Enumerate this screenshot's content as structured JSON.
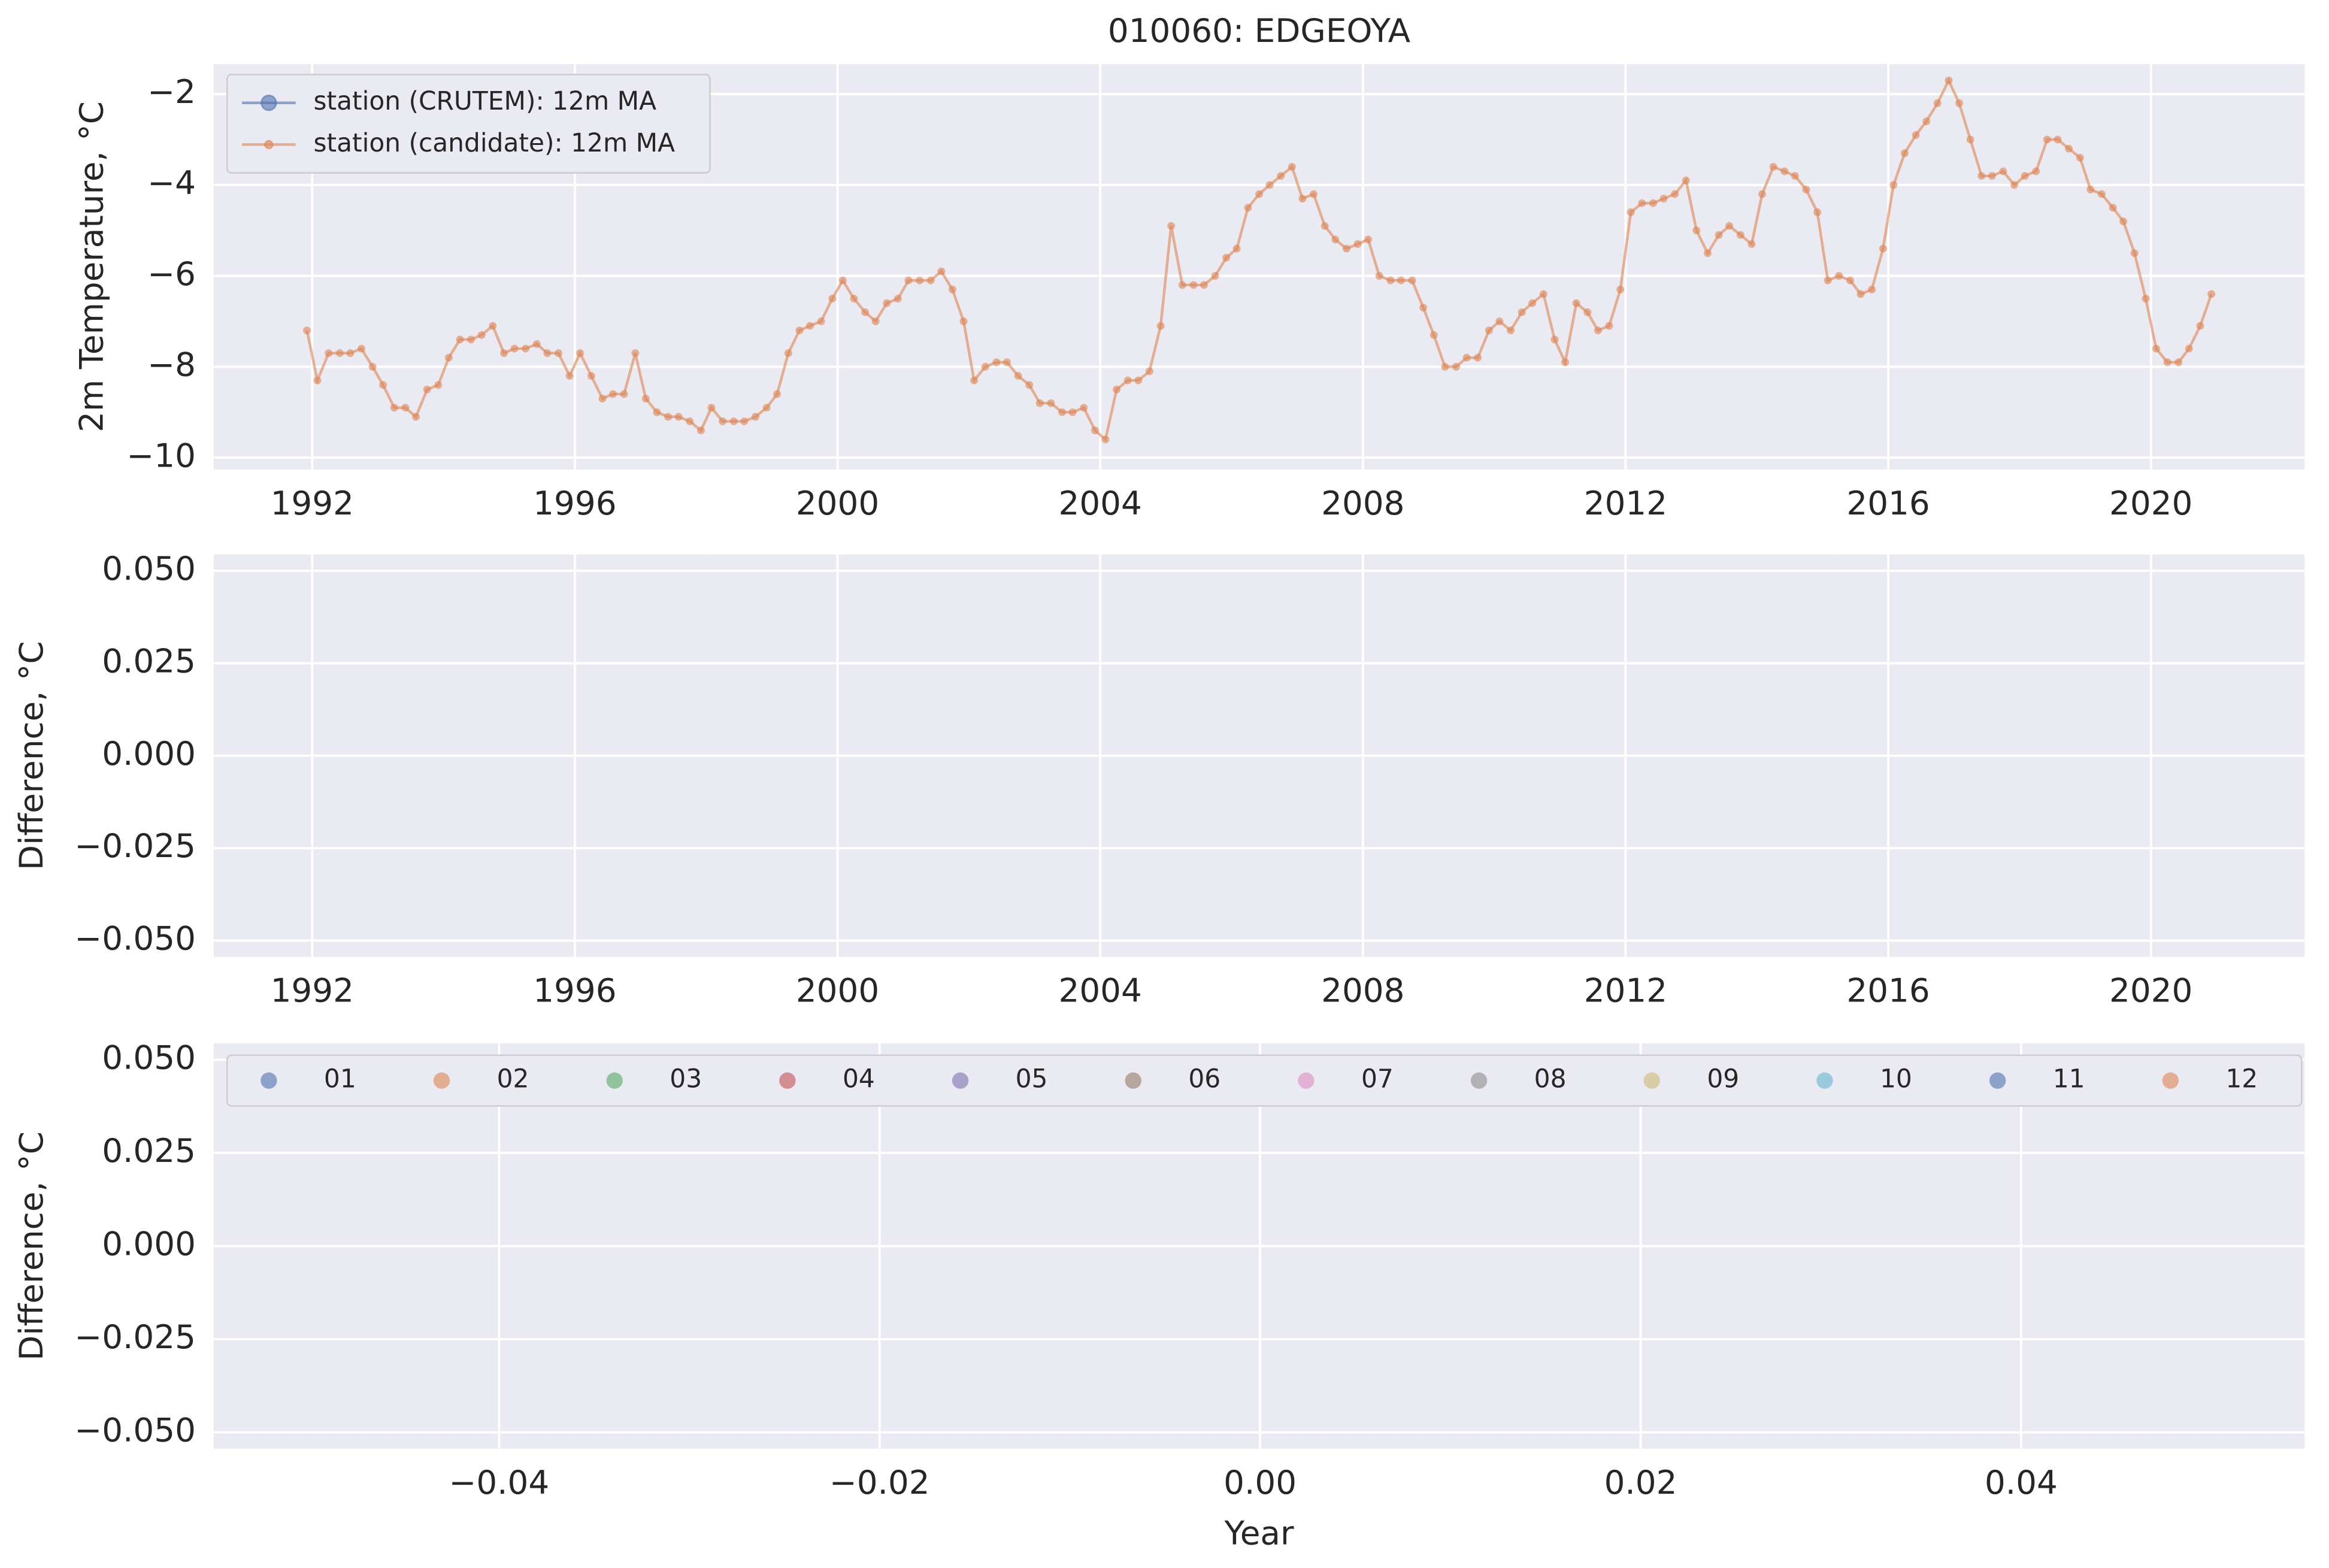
{
  "chart_data": [
    {
      "type": "line",
      "title": "010060: EDGEOYA",
      "ylabel": "2m Temperature, °C",
      "x": [
        1991.92,
        1992.08,
        1992.25,
        1992.42,
        1992.58,
        1992.75,
        1992.92,
        1993.08,
        1993.25,
        1993.42,
        1993.58,
        1993.75,
        1993.92,
        1994.08,
        1994.25,
        1994.42,
        1994.58,
        1994.75,
        1994.92,
        1995.08,
        1995.25,
        1995.42,
        1995.58,
        1995.75,
        1995.92,
        1996.08,
        1996.25,
        1996.42,
        1996.58,
        1996.75,
        1996.92,
        1997.08,
        1997.25,
        1997.42,
        1997.58,
        1997.75,
        1997.92,
        1998.08,
        1998.25,
        1998.42,
        1998.58,
        1998.75,
        1998.92,
        1999.08,
        1999.25,
        1999.42,
        1999.58,
        1999.75,
        1999.92,
        2000.08,
        2000.25,
        2000.42,
        2000.58,
        2000.75,
        2000.92,
        2001.08,
        2001.25,
        2001.42,
        2001.58,
        2001.75,
        2001.92,
        2002.08,
        2002.25,
        2002.42,
        2002.58,
        2002.75,
        2002.92,
        2003.08,
        2003.25,
        2003.42,
        2003.58,
        2003.75,
        2003.92,
        2004.08,
        2004.25,
        2004.42,
        2004.58,
        2004.75,
        2004.92,
        2005.08,
        2005.25,
        2005.42,
        2005.58,
        2005.75,
        2005.92,
        2006.08,
        2006.25,
        2006.42,
        2006.58,
        2006.75,
        2006.92,
        2007.08,
        2007.25,
        2007.42,
        2007.58,
        2007.75,
        2007.92,
        2008.08,
        2008.25,
        2008.42,
        2008.58,
        2008.75,
        2008.92,
        2009.08,
        2009.25,
        2009.42,
        2009.58,
        2009.75,
        2009.92,
        2010.08,
        2010.25,
        2010.42,
        2010.58,
        2010.75,
        2010.92,
        2011.08,
        2011.25,
        2011.42,
        2011.58,
        2011.75,
        2011.92,
        2012.08,
        2012.25,
        2012.42,
        2012.58,
        2012.75,
        2012.92,
        2013.08,
        2013.25,
        2013.42,
        2013.58,
        2013.75,
        2013.92,
        2014.08,
        2014.25,
        2014.42,
        2014.58,
        2014.75,
        2014.92,
        2015.08,
        2015.25,
        2015.42,
        2015.58,
        2015.75,
        2015.92,
        2016.08,
        2016.25,
        2016.42,
        2016.58,
        2016.75,
        2016.92,
        2017.08,
        2017.25,
        2017.42,
        2017.58,
        2017.75,
        2017.92,
        2018.08,
        2018.25,
        2018.42,
        2018.58,
        2018.75,
        2018.92,
        2019.08,
        2019.25,
        2019.42,
        2019.58,
        2019.75,
        2019.92,
        2020.08,
        2020.25,
        2020.42,
        2020.58,
        2020.75,
        2020.92
      ],
      "series": [
        {
          "name": "station (CRUTEM): 12m MA",
          "color": "#4c72b0",
          "values": [
            null,
            null,
            null,
            null,
            null,
            null,
            null,
            null,
            null,
            null,
            null,
            null,
            null,
            null,
            null,
            null,
            null,
            null,
            null,
            null,
            null,
            null,
            null,
            null,
            null,
            null,
            null,
            null,
            null,
            null,
            null,
            null,
            null,
            null,
            null,
            null,
            null,
            null,
            null,
            null,
            null,
            null,
            null,
            null,
            null,
            null,
            null,
            null,
            null,
            null,
            null,
            null,
            null,
            null,
            null,
            null,
            null,
            null,
            null,
            null,
            null,
            null,
            null,
            null,
            null,
            null,
            null,
            null,
            null,
            null,
            null,
            null,
            null,
            null,
            null,
            null,
            null,
            null,
            null,
            null,
            null,
            null,
            null,
            null,
            null,
            null,
            null,
            null,
            null,
            null,
            null,
            null,
            null,
            null,
            null,
            null,
            null,
            null,
            null,
            null,
            null,
            null,
            null,
            null,
            null,
            null,
            null,
            null,
            null,
            null,
            null,
            null,
            null,
            null,
            null,
            null,
            null,
            null,
            null,
            null,
            null,
            null,
            null,
            null,
            null,
            null,
            null,
            null,
            null,
            null,
            null,
            null,
            null,
            null,
            null,
            null,
            null,
            null,
            null,
            null,
            null,
            null,
            null,
            null,
            null,
            null,
            null,
            null,
            null,
            null,
            null,
            null,
            null,
            null,
            null,
            null,
            null,
            null,
            null,
            null,
            null,
            null,
            null,
            null,
            null,
            null,
            null,
            null,
            null,
            null,
            null,
            null,
            null,
            null,
            null
          ]
        },
        {
          "name": "station (candidate): 12m MA",
          "color": "#dd8452",
          "values": [
            -7.2,
            -8.3,
            -7.7,
            -7.7,
            -7.7,
            -7.6,
            -8.0,
            -8.4,
            -8.9,
            -8.9,
            -9.1,
            -8.5,
            -8.4,
            -7.8,
            -7.4,
            -7.4,
            -7.3,
            -7.1,
            -7.7,
            -7.6,
            -7.6,
            -7.5,
            -7.7,
            -7.7,
            -8.2,
            -7.7,
            -8.2,
            -8.7,
            -8.6,
            -8.6,
            -7.7,
            -8.7,
            -9.0,
            -9.1,
            -9.1,
            -9.2,
            -9.4,
            -8.9,
            -9.2,
            -9.2,
            -9.2,
            -9.1,
            -8.9,
            -8.6,
            -7.7,
            -7.2,
            -7.1,
            -7.0,
            -6.5,
            -6.1,
            -6.5,
            -6.8,
            -7.0,
            -6.6,
            -6.5,
            -6.1,
            -6.1,
            -6.1,
            -5.9,
            -6.3,
            -7.0,
            -8.3,
            -8.0,
            -7.9,
            -7.9,
            -8.2,
            -8.4,
            -8.8,
            -8.8,
            -9.0,
            -9.0,
            -8.9,
            -9.4,
            -9.6,
            -8.5,
            -8.3,
            -8.3,
            -8.1,
            -7.1,
            -4.9,
            -6.2,
            -6.2,
            -6.2,
            -6.0,
            -5.6,
            -5.4,
            -4.5,
            -4.2,
            -4.0,
            -3.8,
            -3.6,
            -4.3,
            -4.2,
            -4.9,
            -5.2,
            -5.4,
            -5.3,
            -5.2,
            -6.0,
            -6.1,
            -6.1,
            -6.1,
            -6.7,
            -7.3,
            -8.0,
            -8.0,
            -7.8,
            -7.8,
            -7.2,
            -7.0,
            -7.2,
            -6.8,
            -6.6,
            -6.4,
            -7.4,
            -7.9,
            -6.6,
            -6.8,
            -7.2,
            -7.1,
            -6.3,
            -4.6,
            -4.4,
            -4.4,
            -4.3,
            -4.2,
            -3.9,
            -5.0,
            -5.5,
            -5.1,
            -4.9,
            -5.1,
            -5.3,
            -4.2,
            -3.6,
            -3.7,
            -3.8,
            -4.1,
            -4.6,
            -6.1,
            -6.0,
            -6.1,
            -6.4,
            -6.3,
            -5.4,
            -4.0,
            -3.3,
            -2.9,
            -2.6,
            -2.2,
            -1.7,
            -2.2,
            -3.0,
            -3.8,
            -3.8,
            -3.7,
            -4.0,
            -3.8,
            -3.7,
            -3.0,
            -3.0,
            -3.2,
            -3.4,
            -4.1,
            -4.2,
            -4.5,
            -4.8,
            -5.5,
            -6.5,
            -7.6,
            -7.9,
            -7.9,
            -7.6,
            -7.1,
            -6.4
          ]
        }
      ],
      "xlim": [
        1990.5,
        2022.34
      ],
      "ylim": [
        -10.26,
        -1.34
      ],
      "xticks": [
        1992,
        1996,
        2000,
        2004,
        2008,
        2012,
        2016,
        2020
      ],
      "yticks": [
        {
          "value": -10,
          "label": "−10"
        },
        {
          "value": -8,
          "label": "−8"
        },
        {
          "value": -6,
          "label": "−6"
        },
        {
          "value": -4,
          "label": "−4"
        },
        {
          "value": -2,
          "label": "−2"
        }
      ],
      "grid": true,
      "legend": "upper left"
    },
    {
      "type": "line",
      "ylabel": "Difference, °C",
      "series": [],
      "xlim": [
        1990.5,
        2022.34
      ],
      "ylim": [
        -0.0544,
        0.0544
      ],
      "xticks": [
        1992,
        1996,
        2000,
        2004,
        2008,
        2012,
        2016,
        2020
      ],
      "yticks": [
        {
          "value": -0.05,
          "label": "−0.050"
        },
        {
          "value": -0.025,
          "label": "−0.025"
        },
        {
          "value": 0,
          "label": "0.000"
        },
        {
          "value": 0.025,
          "label": "0.025"
        },
        {
          "value": 0.05,
          "label": "0.050"
        }
      ],
      "grid": true
    },
    {
      "type": "scatter",
      "ylabel": "Difference, °C",
      "xlabel": "Year",
      "series": [
        {
          "name": "01",
          "color": "#4c72b0",
          "values": []
        },
        {
          "name": "02",
          "color": "#dd8452",
          "values": []
        },
        {
          "name": "03",
          "color": "#55a868",
          "values": []
        },
        {
          "name": "04",
          "color": "#c44e52",
          "values": []
        },
        {
          "name": "05",
          "color": "#8172b3",
          "values": []
        },
        {
          "name": "06",
          "color": "#937860",
          "values": []
        },
        {
          "name": "07",
          "color": "#da8bc3",
          "values": []
        },
        {
          "name": "08",
          "color": "#8c8c8c",
          "values": []
        },
        {
          "name": "09",
          "color": "#ccb974",
          "values": []
        },
        {
          "name": "10",
          "color": "#64b5cd",
          "values": []
        },
        {
          "name": "11",
          "color": "#4c72b0",
          "values": []
        },
        {
          "name": "12",
          "color": "#dd8452",
          "values": []
        }
      ],
      "xlim": [
        -0.055,
        0.0549
      ],
      "ylim": [
        -0.0544,
        0.0544
      ],
      "xticks": [
        {
          "value": -0.04,
          "label": "−0.04"
        },
        {
          "value": -0.02,
          "label": "−0.02"
        },
        {
          "value": 0,
          "label": "0.00"
        },
        {
          "value": 0.02,
          "label": "0.02"
        },
        {
          "value": 0.04,
          "label": "0.04"
        }
      ],
      "yticks": [
        {
          "value": -0.05,
          "label": "−0.050"
        },
        {
          "value": -0.025,
          "label": "−0.025"
        },
        {
          "value": 0,
          "label": "0.000"
        },
        {
          "value": 0.025,
          "label": "0.025"
        },
        {
          "value": 0.05,
          "label": "0.050"
        }
      ],
      "grid": true,
      "legend": "upper center"
    }
  ]
}
